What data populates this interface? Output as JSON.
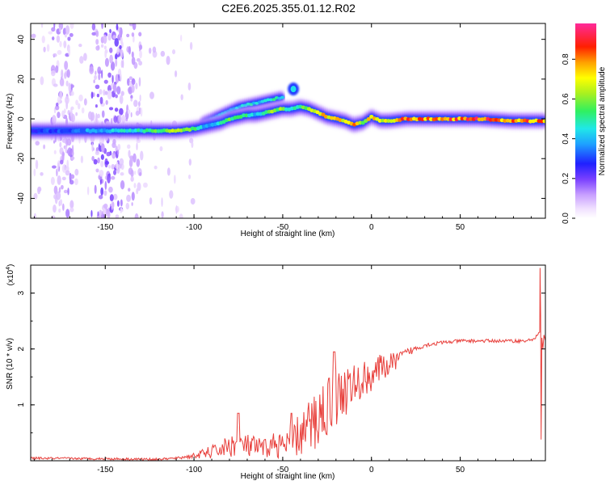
{
  "title": "C2E6.2025.355.01.12.R02",
  "colorbar": {
    "label": "Normalized spectral amplitude",
    "ticks": [
      0.0,
      0.2,
      0.4,
      0.6,
      0.8
    ],
    "tick_labels": [
      "0.0",
      "0.2",
      "0.4",
      "0.6",
      "0.8"
    ]
  },
  "chart_data": [
    {
      "type": "heatmap",
      "name": "spectrogram",
      "xlabel": "Height of straight line (km)",
      "ylabel": "Frequency (Hz)",
      "xlim": [
        -192,
        98
      ],
      "ylim": [
        -50,
        48
      ],
      "x_ticks": [
        -150,
        -100,
        -50,
        0,
        50
      ],
      "x_tick_labels": [
        "-150",
        "-100",
        "-50",
        "0",
        "50"
      ],
      "y_ticks": [
        -40,
        -20,
        0,
        20,
        40
      ],
      "y_tick_labels": [
        "-40",
        "-20",
        "0",
        "20",
        "40"
      ],
      "ridge": {
        "x": [
          -192,
          -170,
          -150,
          -130,
          -110,
          -100,
          -95,
          -90,
          -85,
          -80,
          -75,
          -70,
          -65,
          -60,
          -55,
          -50,
          -45,
          -40,
          -35,
          -30,
          -25,
          -20,
          -15,
          -10,
          -5,
          0,
          5,
          10,
          20,
          40,
          60,
          80,
          98
        ],
        "freq": [
          -6,
          -6,
          -6,
          -6,
          -6,
          -5,
          -4,
          -3,
          -2,
          0,
          1,
          2,
          2,
          3,
          4,
          5,
          5,
          6,
          5,
          3,
          1,
          0,
          -1,
          -3,
          -2,
          1,
          -1,
          -1,
          0,
          0,
          0,
          -1,
          -1
        ],
        "amplitude": [
          0.3,
          0.35,
          0.45,
          0.5,
          0.75,
          0.6,
          0.45,
          0.4,
          0.5,
          0.6,
          0.55,
          0.55,
          0.45,
          0.5,
          0.7,
          0.6,
          0.55,
          0.6,
          0.65,
          0.75,
          0.8,
          0.8,
          0.8,
          0.85,
          0.7,
          0.8,
          0.75,
          0.8,
          0.88,
          0.9,
          0.92,
          0.9,
          0.85
        ]
      },
      "upper_branch": {
        "x": [
          -95,
          -90,
          -85,
          -80,
          -75,
          -70,
          -65,
          -60,
          -55,
          -50
        ],
        "freq": [
          -2,
          0,
          2,
          4,
          6,
          7,
          8,
          9,
          10,
          11
        ],
        "amplitude": [
          0.35,
          0.4,
          0.45,
          0.4,
          0.45,
          0.5,
          0.45,
          0.5,
          0.55,
          0.45
        ]
      },
      "blob": {
        "x": -44,
        "freq": 15,
        "amplitude": 0.45
      }
    },
    {
      "type": "line",
      "name": "snr",
      "xlabel": "Height of straight line (km)",
      "ylabel": "SNR (10 * v/v)",
      "scale_label": "(x10",
      "scale_exponent": "4",
      "scale_close": ")",
      "xlim": [
        -192,
        98
      ],
      "ylim": [
        0,
        3.5
      ],
      "x_ticks": [
        -150,
        -100,
        -50,
        0,
        50
      ],
      "x_tick_labels": [
        "-150",
        "-100",
        "-50",
        "0",
        "50"
      ],
      "y_ticks": [
        1,
        2,
        3
      ],
      "y_tick_labels": [
        "1",
        "2",
        "3"
      ],
      "color": "#e8403c",
      "envelope": {
        "x": [
          -192,
          -150,
          -120,
          -110,
          -100,
          -90,
          -80,
          -75,
          -70,
          -60,
          -55,
          -50,
          -45,
          -40,
          -35,
          -30,
          -25,
          -20,
          -15,
          -10,
          -5,
          0,
          5,
          10,
          15,
          20,
          25,
          30,
          40,
          50,
          60,
          70,
          80,
          88,
          92,
          95,
          96,
          97,
          98
        ],
        "y": [
          0.05,
          0.04,
          0.03,
          0.05,
          0.1,
          0.18,
          0.3,
          0.35,
          0.3,
          0.25,
          0.35,
          0.3,
          0.4,
          0.55,
          0.7,
          0.9,
          1.1,
          1.25,
          1.35,
          1.4,
          1.5,
          1.6,
          1.7,
          1.75,
          1.85,
          1.95,
          2.02,
          2.08,
          2.12,
          2.15,
          2.15,
          2.15,
          2.15,
          2.15,
          2.2,
          2.3,
          1.5,
          2.3,
          2.15
        ]
      },
      "noise": {
        "x": [
          -192,
          -150,
          -110,
          -100,
          -90,
          -80,
          -70,
          -60,
          -50,
          -40,
          -30,
          -20,
          -10,
          0,
          10,
          20,
          30,
          50,
          98
        ],
        "y": [
          0.02,
          0.02,
          0.02,
          0.05,
          0.12,
          0.2,
          0.22,
          0.18,
          0.25,
          0.4,
          0.6,
          0.55,
          0.4,
          0.3,
          0.2,
          0.08,
          0.04,
          0.03,
          0.03
        ]
      },
      "spikes": [
        {
          "x": -75,
          "y": 0.85
        },
        {
          "x": -45,
          "y": 0.85
        },
        {
          "x": -21,
          "y": 1.95
        },
        {
          "x": 95,
          "y": 3.45
        },
        {
          "x": 95.6,
          "y": 0.38
        }
      ]
    }
  ]
}
